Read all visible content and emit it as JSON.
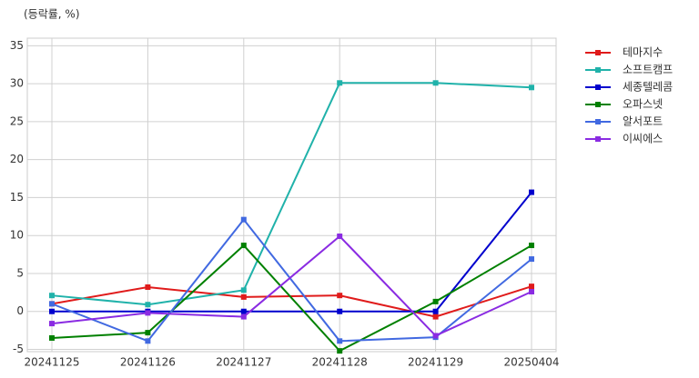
{
  "chart_data": {
    "type": "line",
    "y_label": "(등락률, %)",
    "categories": [
      "20241125",
      "20241126",
      "20241127",
      "20241128",
      "20241129",
      "20250404"
    ],
    "series": [
      {
        "name": "테마지수",
        "color": "#e01b1b",
        "values": [
          1.0,
          3.2,
          1.9,
          2.1,
          -0.7,
          3.3
        ]
      },
      {
        "name": "소프트캠프",
        "color": "#20b2aa",
        "values": [
          2.1,
          0.9,
          2.8,
          30.1,
          30.1,
          29.5
        ]
      },
      {
        "name": "세종텔레콤",
        "color": "#0000cd",
        "values": [
          0,
          0,
          0,
          0,
          0,
          15.7
        ]
      },
      {
        "name": "오파스넷",
        "color": "#008000",
        "values": [
          -3.5,
          -2.8,
          8.7,
          -5.2,
          1.3,
          8.7
        ]
      },
      {
        "name": "알서포트",
        "color": "#4169e1",
        "values": [
          1.0,
          -3.9,
          12.1,
          -3.9,
          -3.4,
          6.9
        ]
      },
      {
        "name": "이씨에스",
        "color": "#8a2be2",
        "values": [
          -1.6,
          -0.2,
          -0.7,
          9.9,
          -3.2,
          2.6
        ]
      }
    ],
    "ylim": [
      -5.3,
      36
    ],
    "yticks": [
      -5,
      0,
      5,
      10,
      15,
      20,
      25,
      30,
      35
    ],
    "grid": true,
    "legend": "right"
  }
}
